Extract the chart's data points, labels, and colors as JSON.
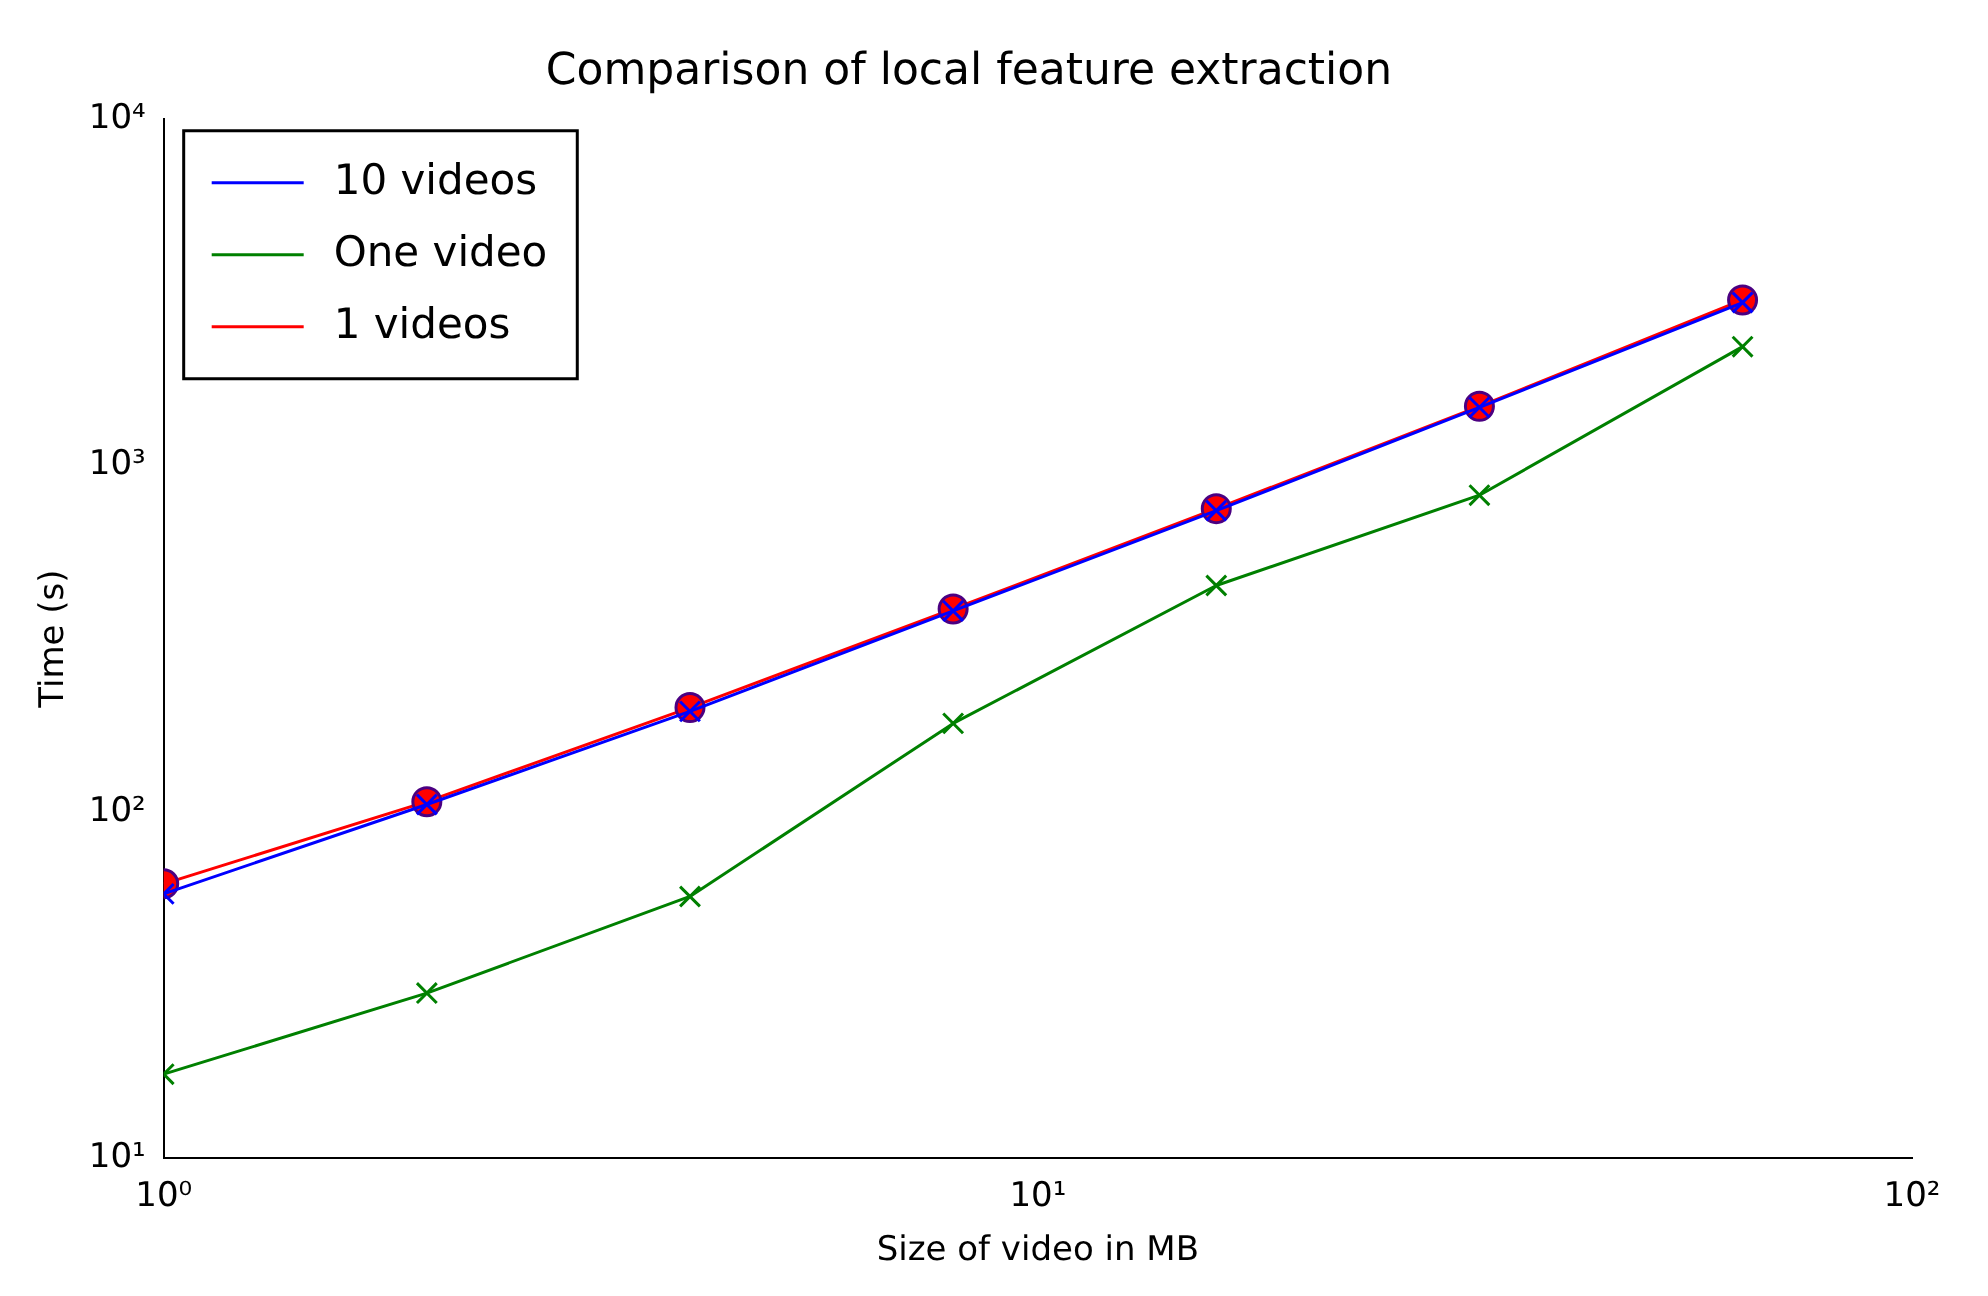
{
  "chart_data": {
    "type": "line",
    "title": "Comparison of local feature extraction",
    "xlabel": "Size of video in MB",
    "ylabel": "Time (s)",
    "x": [
      1,
      2,
      4,
      8,
      16,
      32,
      64
    ],
    "series": [
      {
        "name": "10 videos",
        "color": "#0000ff",
        "marker": "cross",
        "values": [
          58,
          105,
          195,
          380,
          740,
          1470,
          2950
        ]
      },
      {
        "name": "One video",
        "color": "#008000",
        "marker": "cross",
        "values": [
          17.5,
          30,
          57,
          180,
          450,
          820,
          2200
        ]
      },
      {
        "name": "1 videos",
        "color": "#ff0000",
        "marker": "circle",
        "values": [
          62,
          107,
          200,
          385,
          750,
          1480,
          3000
        ]
      }
    ],
    "log": "xy",
    "xlim": [
      1,
      100
    ],
    "ylim": [
      10,
      10000
    ],
    "xticks": [
      {
        "value": 1,
        "label": "10⁰"
      },
      {
        "value": 10,
        "label": "10¹"
      },
      {
        "value": 100,
        "label": "10²"
      }
    ],
    "yticks": [
      {
        "value": 10,
        "label": "10¹"
      },
      {
        "value": 100,
        "label": "10²"
      },
      {
        "value": 1000,
        "label": "10³"
      },
      {
        "value": 10000,
        "label": "10⁴"
      }
    ],
    "grid": false,
    "legend": "top left"
  }
}
